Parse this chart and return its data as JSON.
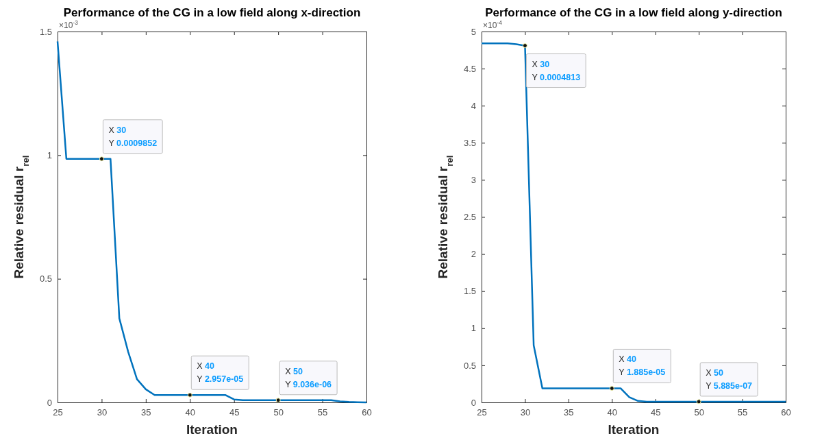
{
  "chart_data": [
    {
      "type": "line",
      "title": "Performance of the CG in a low field along x-direction",
      "xlabel": "Iteration",
      "ylabel": "Relative residual r$_{rel}$",
      "x": [
        25,
        26,
        27,
        28,
        29,
        30,
        31,
        32,
        33,
        34,
        35,
        36,
        37,
        38,
        39,
        40,
        41,
        42,
        43,
        44,
        45,
        46,
        47,
        48,
        49,
        50,
        51,
        52,
        53,
        54,
        55,
        56,
        57,
        58,
        59,
        60
      ],
      "series": [
        {
          "color": "#0072bd",
          "values": [
            1.46,
            0.985,
            0.985,
            0.985,
            0.985,
            0.985,
            0.985,
            0.34,
            0.205,
            0.094,
            0.053,
            0.03,
            0.03,
            0.03,
            0.03,
            0.03,
            0.03,
            0.03,
            0.03,
            0.03,
            0.012,
            0.009,
            0.009,
            0.009,
            0.009,
            0.009,
            0.009,
            0.009,
            0.009,
            0.009,
            0.009,
            0.009,
            0.004,
            0.002,
            0.001,
            0
          ]
        }
      ],
      "xlim": [
        25,
        60
      ],
      "xticks": [
        25,
        30,
        35,
        40,
        45,
        50,
        55,
        60
      ],
      "ylim": [
        0,
        1.5
      ],
      "yticks": [
        0,
        0.5,
        1,
        1.5
      ],
      "annotations": [
        "×10$^{-3}$",
        {
          "text": "X 30\nY 0.0009852",
          "x": 30,
          "y": 0.985
        },
        {
          "text": "X 40\nY 2.957e-05",
          "x": 40,
          "y": 0.03
        },
        {
          "text": "X 50\nY 9.036e-06",
          "x": 50,
          "y": 0.009
        }
      ],
      "grid": false,
      "marker": "none",
      "line_style": "solid"
    },
    {
      "type": "line",
      "title": "Performance of the CG in a low field along y-direction",
      "xlabel": "Iteration",
      "ylabel": "Relative residual r$_{rel}$",
      "x": [
        25,
        26,
        27,
        28,
        29,
        30,
        31,
        32,
        33,
        34,
        35,
        36,
        37,
        38,
        39,
        40,
        41,
        42,
        43,
        44,
        45,
        46,
        47,
        48,
        49,
        50,
        51,
        52,
        53,
        54,
        55,
        56,
        57,
        58,
        59,
        60
      ],
      "series": [
        {
          "color": "#0072bd",
          "values": [
            4.84,
            4.84,
            4.84,
            4.84,
            4.83,
            4.81,
            0.77,
            0.19,
            0.19,
            0.19,
            0.19,
            0.19,
            0.19,
            0.19,
            0.19,
            0.19,
            0.19,
            0.07,
            0.02,
            0.01,
            0.01,
            0.01,
            0.01,
            0.01,
            0.01,
            0.01,
            0.01,
            0.01,
            0.01,
            0.01,
            0.01,
            0.01,
            0.01,
            0.01,
            0.01,
            0.01
          ]
        }
      ],
      "xlim": [
        25,
        60
      ],
      "xticks": [
        25,
        30,
        35,
        40,
        45,
        50,
        55,
        60
      ],
      "ylim": [
        0,
        5
      ],
      "yticks": [
        0,
        0.5,
        1,
        1.5,
        2,
        2.5,
        3,
        3.5,
        4,
        4.5,
        5
      ],
      "annotations": [
        "×10$^{-4}$",
        {
          "text": "X 30\nY 0.0004813",
          "x": 30,
          "y": 4.81
        },
        {
          "text": "X 40\nY 1.885e-05",
          "x": 40,
          "y": 0.19
        },
        {
          "text": "X 50\nY 5.885e-07",
          "x": 50,
          "y": 0.01
        }
      ],
      "grid": false,
      "marker": "none",
      "line_style": "solid"
    }
  ]
}
